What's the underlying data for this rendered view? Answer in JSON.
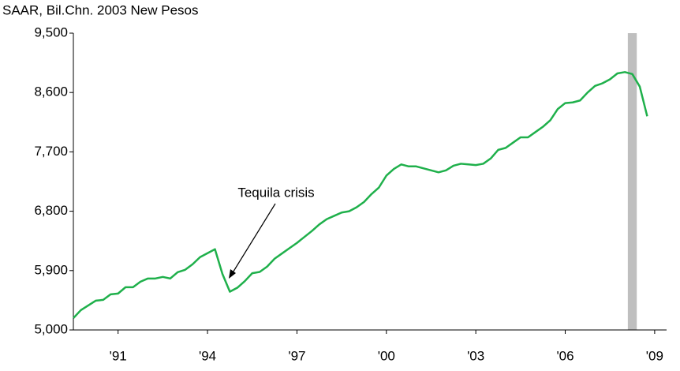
{
  "chart_data": {
    "type": "line",
    "ylabel": "SAAR, Bil.Chn. 2003 New Pesos",
    "annotation": "Tequila crisis",
    "x": [
      1989.5,
      1989.75,
      1990,
      1990.25,
      1990.5,
      1990.75,
      1991,
      1991.25,
      1991.5,
      1991.75,
      1992,
      1992.25,
      1992.5,
      1992.75,
      1993,
      1993.25,
      1993.5,
      1993.75,
      1994,
      1994.25,
      1994.5,
      1994.75,
      1995,
      1995.25,
      1995.5,
      1995.75,
      1996,
      1996.25,
      1996.5,
      1996.75,
      1997,
      1997.25,
      1997.5,
      1997.75,
      1998,
      1998.25,
      1998.5,
      1998.75,
      1999,
      1999.25,
      1999.5,
      1999.75,
      2000,
      2000.25,
      2000.5,
      2000.75,
      2001,
      2001.25,
      2001.5,
      2001.75,
      2002,
      2002.25,
      2002.5,
      2002.75,
      2003,
      2003.25,
      2003.5,
      2003.75,
      2004,
      2004.25,
      2004.5,
      2004.75,
      2005,
      2005.25,
      2005.5,
      2005.75,
      2006,
      2006.25,
      2006.5,
      2006.75,
      2007,
      2007.25,
      2007.5,
      2007.75,
      2008,
      2008.25,
      2008.5,
      2008.75
    ],
    "series": [
      {
        "color": "#1fb04b",
        "values": [
          5180,
          5300,
          5372,
          5444,
          5456,
          5540,
          5552,
          5648,
          5648,
          5732,
          5780,
          5780,
          5804,
          5780,
          5876,
          5912,
          5996,
          6104,
          6164,
          6224,
          5850,
          5580,
          5640,
          5740,
          5860,
          5880,
          5960,
          6080,
          6160,
          6240,
          6320,
          6410,
          6500,
          6600,
          6680,
          6730,
          6780,
          6800,
          6860,
          6940,
          7060,
          7160,
          7340,
          7440,
          7510,
          7480,
          7480,
          7450,
          7420,
          7390,
          7420,
          7490,
          7520,
          7510,
          7500,
          7520,
          7600,
          7730,
          7760,
          7840,
          7920,
          7920,
          8000,
          8080,
          8180,
          8350,
          8440,
          8450,
          8480,
          8600,
          8700,
          8740,
          8800,
          8890,
          8910,
          8880,
          8690,
          8240
        ]
      }
    ],
    "shade": [
      2008.1,
      2008.4
    ],
    "shade_color": "#bfbfbf",
    "xlim": [
      1989.5,
      2009.4
    ],
    "xticks": [
      {
        "value": 1991,
        "label": "'91"
      },
      {
        "value": 1994,
        "label": "'94"
      },
      {
        "value": 1997,
        "label": "'97"
      },
      {
        "value": 2000,
        "label": "'00"
      },
      {
        "value": 2003,
        "label": "'03"
      },
      {
        "value": 2006,
        "label": "'06"
      },
      {
        "value": 2009,
        "label": "'09"
      }
    ],
    "ylim": [
      5000,
      9500
    ],
    "yticks": [
      {
        "value": 5000,
        "label": "5,000"
      },
      {
        "value": 5900,
        "label": "5,900"
      },
      {
        "value": 6800,
        "label": "6,800"
      },
      {
        "value": 7700,
        "label": "7,700"
      },
      {
        "value": 8600,
        "label": "8,600"
      },
      {
        "value": 9500,
        "label": "9,500"
      }
    ]
  }
}
